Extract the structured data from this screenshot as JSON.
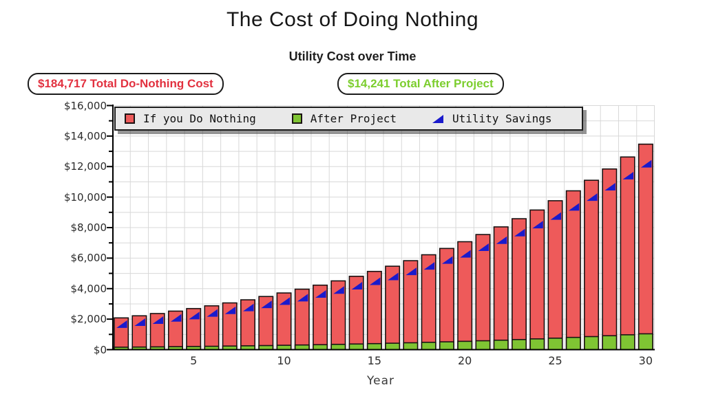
{
  "page_title": "The Cost of Doing Nothing",
  "chart_title": "Utility Cost over Time",
  "badges": {
    "do_nothing": "$184,717 Total Do-Nothing Cost",
    "after_project": "$14,241 Total After Project"
  },
  "legend": {
    "items": [
      {
        "label": "If you Do Nothing",
        "swatch": "red-square"
      },
      {
        "label": "After Project",
        "swatch": "green-square"
      },
      {
        "label": "Utility Savings",
        "swatch": "blue-triangle"
      }
    ]
  },
  "colors": {
    "do_nothing_bar": "#ee5a5a",
    "after_project_bar": "#7fc433",
    "savings_marker": "#1a1acc",
    "bar_outline": "#1a1212",
    "badge_red_text": "#e2313f",
    "badge_green_text": "#7cce2e",
    "legend_background": "#e9e9e9",
    "gridline": "#d8d8d8",
    "axis": "#000000"
  },
  "chart_data": {
    "type": "bar",
    "title": "Utility Cost over Time",
    "xlabel": "Year",
    "ylabel": "",
    "x": [
      1,
      2,
      3,
      4,
      5,
      6,
      7,
      8,
      9,
      10,
      11,
      12,
      13,
      14,
      15,
      16,
      17,
      18,
      19,
      20,
      21,
      22,
      23,
      24,
      25,
      26,
      27,
      28,
      29,
      30
    ],
    "series": [
      {
        "name": "If you Do Nothing",
        "type": "bar",
        "color": "#ee5a5a",
        "values": [
          2082,
          2220,
          2368,
          2526,
          2694,
          2873,
          3064,
          3267,
          3485,
          3716,
          3964,
          4227,
          4508,
          4808,
          5128,
          5469,
          5832,
          6220,
          6634,
          7075,
          7546,
          8047,
          8583,
          9153,
          9762,
          10411,
          11103,
          11842,
          12629,
          13469
        ]
      },
      {
        "name": "After Project",
        "type": "bar",
        "color": "#7fc433",
        "values": [
          161,
          171,
          183,
          195,
          208,
          221,
          236,
          252,
          269,
          287,
          306,
          326,
          348,
          371,
          395,
          422,
          450,
          480,
          512,
          546,
          582,
          620,
          662,
          706,
          753,
          803,
          856,
          913,
          974,
          1038
        ]
      },
      {
        "name": "Utility Savings",
        "type": "triangle-marker",
        "color": "#1a1acc",
        "values": [
          1921,
          2049,
          2185,
          2331,
          2486,
          2652,
          2828,
          3015,
          3216,
          3429,
          3658,
          3901,
          4160,
          4437,
          4733,
          5047,
          5382,
          5740,
          6122,
          6529,
          6964,
          7427,
          7921,
          8447,
          9009,
          9608,
          10247,
          10929,
          11655,
          12431
        ]
      }
    ],
    "totals": {
      "do_nothing": 184717,
      "after_project": 14241
    },
    "ylim": [
      0,
      16000
    ],
    "ytick_interval": 2000,
    "ytick_labels": [
      "$0",
      "$2,000",
      "$4,000",
      "$6,000",
      "$8,000",
      "$10,000",
      "$12,000",
      "$14,000",
      "$16,000"
    ],
    "xticks": [
      5,
      10,
      15,
      20,
      25,
      30
    ],
    "grid": true,
    "legend_position": "top-left-inside"
  }
}
